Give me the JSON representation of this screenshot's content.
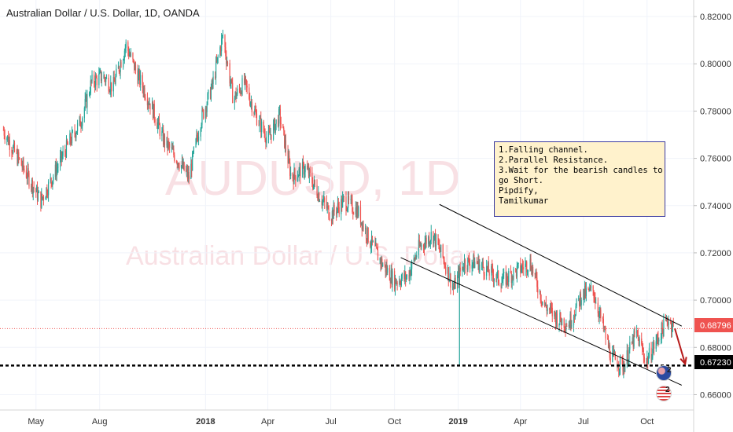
{
  "title": "Australian Dollar / U.S. Dollar, 1D, OANDA",
  "watermark": {
    "symbol": "AUDUSD, 1D",
    "name": "Australian Dollar / U.S. Dollar"
  },
  "price_labels": {
    "current": "0.68796",
    "support": "0.67230"
  },
  "note": {
    "lines": [
      "1.Falling channel.",
      "2.Parallel Resistance.",
      "3.Wait for the bearish candles to",
      "go Short.",
      "",
      "Pipdify,",
      "Tamilkumar"
    ]
  },
  "event_badges": [
    "2",
    "2"
  ],
  "chart_data": {
    "type": "candlestick",
    "title": "Australian Dollar / U.S. Dollar, 1D, OANDA",
    "x_ticks": [
      {
        "label": "May",
        "bold": false
      },
      {
        "label": "Aug",
        "bold": false
      },
      {
        "label": "2018",
        "bold": true
      },
      {
        "label": "Apr",
        "bold": false
      },
      {
        "label": "Jul",
        "bold": false
      },
      {
        "label": "Oct",
        "bold": false
      },
      {
        "label": "2019",
        "bold": true
      },
      {
        "label": "Apr",
        "bold": false
      },
      {
        "label": "Jul",
        "bold": false
      },
      {
        "label": "Oct",
        "bold": false
      }
    ],
    "y_ticks": [
      "0.82000",
      "0.80000",
      "0.78000",
      "0.76000",
      "0.74000",
      "0.72000",
      "0.70000",
      "0.68000",
      "0.66000"
    ],
    "ylim": [
      0.6535,
      0.827
    ],
    "up_color": "#26a69a",
    "down_color": "#ef5350",
    "current_price": 0.68796,
    "support_level": 0.6723,
    "price_path": [
      [
        "2017-03-15",
        0.772
      ],
      [
        "2017-04-01",
        0.762
      ],
      [
        "2017-04-20",
        0.752
      ],
      [
        "2017-05-08",
        0.742
      ],
      [
        "2017-05-25",
        0.752
      ],
      [
        "2017-06-15",
        0.765
      ],
      [
        "2017-07-05",
        0.776
      ],
      [
        "2017-07-20",
        0.792
      ],
      [
        "2017-08-05",
        0.795
      ],
      [
        "2017-08-20",
        0.79
      ],
      [
        "2017-09-08",
        0.808
      ],
      [
        "2017-09-25",
        0.795
      ],
      [
        "2017-10-15",
        0.782
      ],
      [
        "2017-11-01",
        0.768
      ],
      [
        "2017-11-20",
        0.76
      ],
      [
        "2017-12-08",
        0.752
      ],
      [
        "2017-12-25",
        0.776
      ],
      [
        "2018-01-10",
        0.79
      ],
      [
        "2018-01-26",
        0.812
      ],
      [
        "2018-02-10",
        0.785
      ],
      [
        "2018-02-26",
        0.792
      ],
      [
        "2018-03-15",
        0.778
      ],
      [
        "2018-04-01",
        0.768
      ],
      [
        "2018-04-18",
        0.778
      ],
      [
        "2018-05-05",
        0.752
      ],
      [
        "2018-05-25",
        0.756
      ],
      [
        "2018-06-15",
        0.744
      ],
      [
        "2018-07-01",
        0.736
      ],
      [
        "2018-07-20",
        0.742
      ],
      [
        "2018-08-08",
        0.738
      ],
      [
        "2018-08-25",
        0.726
      ],
      [
        "2018-09-12",
        0.716
      ],
      [
        "2018-10-01",
        0.708
      ],
      [
        "2018-10-20",
        0.71
      ],
      [
        "2018-11-05",
        0.722
      ],
      [
        "2018-11-25",
        0.728
      ],
      [
        "2018-12-10",
        0.718
      ],
      [
        "2018-12-25",
        0.705
      ],
      [
        "2019-01-10",
        0.716
      ],
      [
        "2019-01-28",
        0.716
      ],
      [
        "2019-02-15",
        0.712
      ],
      [
        "2019-03-05",
        0.708
      ],
      [
        "2019-03-25",
        0.712
      ],
      [
        "2019-04-15",
        0.716
      ],
      [
        "2019-05-05",
        0.698
      ],
      [
        "2019-05-25",
        0.692
      ],
      [
        "2019-06-10",
        0.69
      ],
      [
        "2019-06-28",
        0.702
      ],
      [
        "2019-07-15",
        0.704
      ],
      [
        "2019-07-28",
        0.69
      ],
      [
        "2019-08-10",
        0.676
      ],
      [
        "2019-08-28",
        0.672
      ],
      [
        "2019-09-15",
        0.686
      ],
      [
        "2019-09-30",
        0.674
      ],
      [
        "2019-10-15",
        0.683
      ],
      [
        "2019-10-31",
        0.692
      ],
      [
        "2019-11-10",
        0.688
      ]
    ],
    "spikes": [
      {
        "date": "2019-01-03",
        "low": 0.6722
      }
    ],
    "channel": {
      "upper": [
        [
          "2018-12-05",
          0.7405
        ],
        [
          "2019-11-20",
          0.689
        ]
      ],
      "lower": [
        [
          "2018-10-10",
          0.718
        ],
        [
          "2019-11-20",
          0.664
        ]
      ]
    },
    "projection_arrow": [
      [
        "2019-11-10",
        0.688
      ],
      [
        "2019-11-25",
        0.673
      ]
    ]
  }
}
